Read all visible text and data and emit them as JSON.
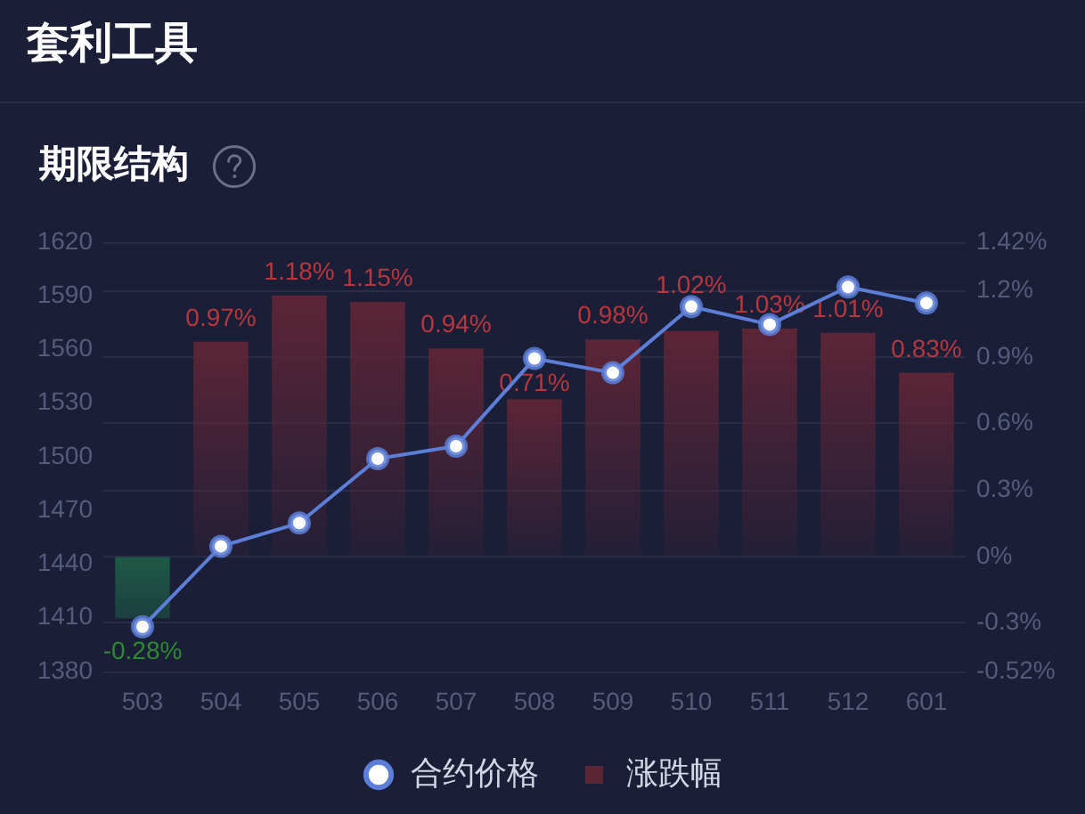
{
  "chart_data": {
    "type": "bar",
    "title": "套利工具",
    "subtitle": "期限结构",
    "categories": [
      "503",
      "504",
      "505",
      "506",
      "507",
      "508",
      "509",
      "510",
      "511",
      "512",
      "601"
    ],
    "series": [
      {
        "name": "合约价格",
        "type": "line",
        "color": "#5b7ed8",
        "values": [
          1405,
          1450,
          1463,
          1499,
          1506,
          1555,
          1547,
          1584,
          1574,
          1595,
          1586
        ]
      },
      {
        "name": "涨跌幅",
        "type": "bar",
        "axis": "y2",
        "colors": [
          "#1d5a45",
          "#5c2536",
          "#5c2536",
          "#5c2536",
          "#5c2536",
          "#5c2536",
          "#5c2536",
          "#5c2536",
          "#5c2536",
          "#5c2536",
          "#5c2536"
        ],
        "values": [
          -0.28,
          0.97,
          1.18,
          1.15,
          0.94,
          0.71,
          0.98,
          1.02,
          1.03,
          1.01,
          0.83
        ],
        "value_labels": [
          "-0.28%",
          "0.97%",
          "1.18%",
          "1.15%",
          "0.94%",
          "0.71%",
          "0.98%",
          "1.02%",
          "1.03%",
          "1.01%",
          "0.83%"
        ]
      }
    ],
    "ylim": [
      1380,
      1620
    ],
    "yticks": [
      1380,
      1410,
      1440,
      1470,
      1500,
      1530,
      1560,
      1590,
      1620
    ],
    "y2lim": [
      -0.52,
      1.42
    ],
    "y2ticks": [
      {
        "value": -0.52,
        "label": "-0.52%"
      },
      {
        "value": -0.3,
        "label": "-0.3%"
      },
      {
        "value": 0,
        "label": "0%"
      },
      {
        "value": 0.3,
        "label": "0.3%"
      },
      {
        "value": 0.6,
        "label": "0.6%"
      },
      {
        "value": 0.9,
        "label": "0.9%"
      },
      {
        "value": 1.2,
        "label": "1.2%"
      },
      {
        "value": 1.42,
        "label": "1.42%"
      }
    ],
    "grid": "y",
    "legend": "bottom",
    "marker": "circle"
  }
}
